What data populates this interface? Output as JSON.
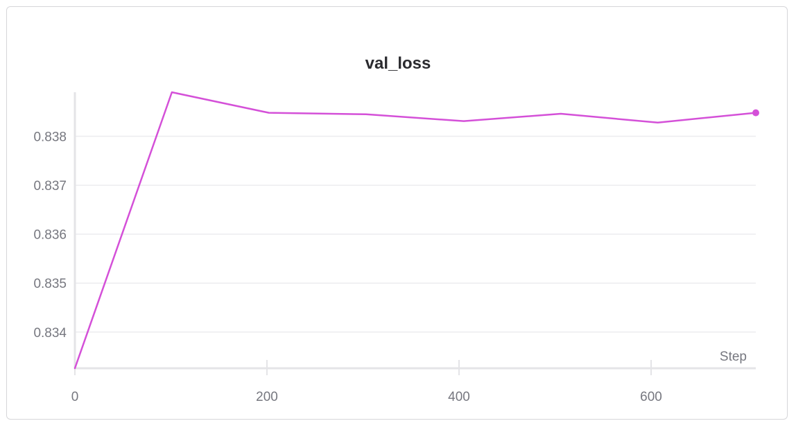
{
  "chart_data": {
    "type": "line",
    "title": "val_loss",
    "xlabel": "Step",
    "ylabel": "",
    "xlim": [
      0,
      709
    ],
    "ylim": [
      0.83326,
      0.8389
    ],
    "x_ticks": [
      0,
      200,
      400,
      600
    ],
    "y_ticks": [
      0.834,
      0.835,
      0.836,
      0.837,
      0.838
    ],
    "y_tick_labels": [
      "0.834",
      "0.835",
      "0.836",
      "0.837",
      "0.838"
    ],
    "x_tick_labels": [
      "0",
      "200",
      "400",
      "600"
    ],
    "grid": true,
    "legend": "none",
    "series": [
      {
        "color": "#d450d8",
        "x": [
          0,
          101,
          202,
          303,
          405,
          506,
          607,
          709
        ],
        "y": [
          0.83326,
          0.8389,
          0.83848,
          0.83845,
          0.83831,
          0.83846,
          0.83828,
          0.83848
        ]
      }
    ]
  }
}
